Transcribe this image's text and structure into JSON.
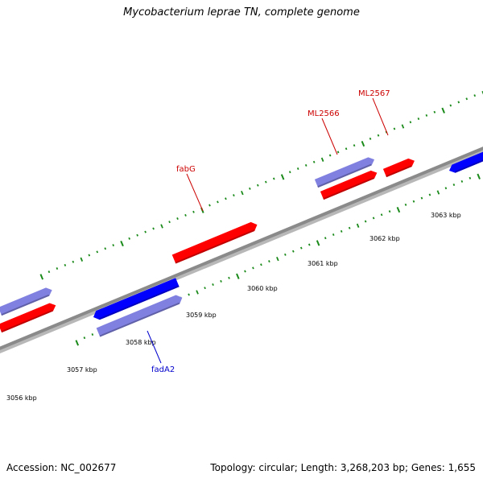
{
  "title": "Mycobacterium leprae TN, complete genome",
  "footer": {
    "accession": "Accession: NC_002677",
    "summary": "Topology: circular; Length: 3,268,203 bp; Genes: 1,655"
  },
  "colors": {
    "forward_gene": "#ff0000",
    "reverse_gene": "#0000ff",
    "other_gene": "#8080e0",
    "backbone": "#8a8a8a",
    "ticks": "#1a8a1a",
    "forward_label": "#cc0000",
    "reverse_label": "#0000cc"
  },
  "axis": {
    "unit": "kbp",
    "tick_labels": [
      "3056 kbp",
      "3057 kbp",
      "3058 kbp",
      "3059 kbp",
      "3060 kbp",
      "3061 kbp",
      "3062 kbp",
      "3063 kbp"
    ]
  },
  "gene_labels": [
    {
      "name": "fabG",
      "strand": "forward"
    },
    {
      "name": "ML2566",
      "strand": "forward"
    },
    {
      "name": "ML2567",
      "strand": "forward"
    },
    {
      "name": "fadA2",
      "strand": "reverse"
    }
  ]
}
